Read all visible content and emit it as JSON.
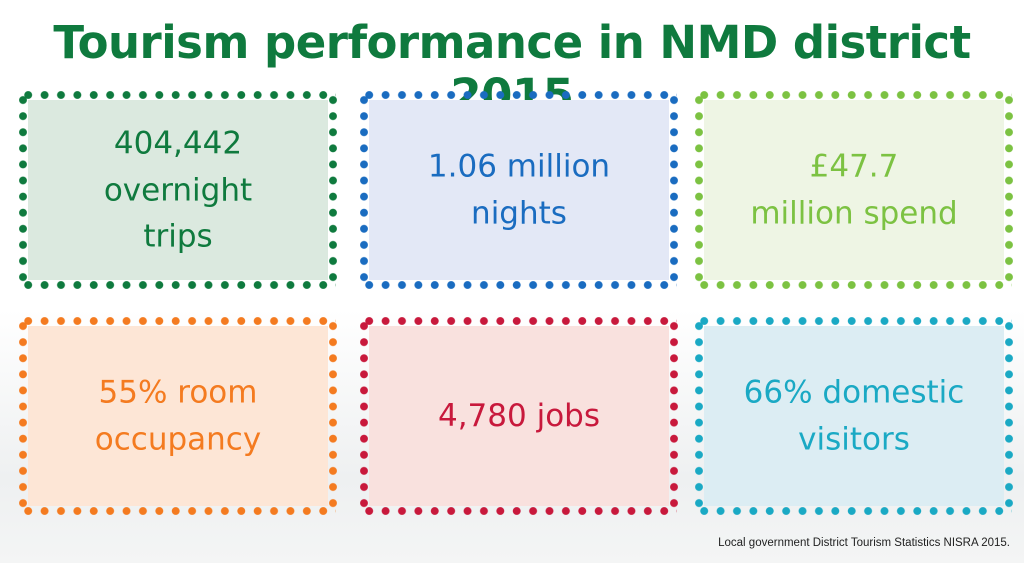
{
  "title": "Tourism performance in NMD district 2015",
  "stats": [
    {
      "lines": [
        "404,442",
        "overnight",
        "trips"
      ],
      "color": "#0f7a3e",
      "fill": "#dbe9df"
    },
    {
      "lines": [
        "1.06 million",
        "nights"
      ],
      "color": "#1a6cc0",
      "fill": "#e3e8f6"
    },
    {
      "lines": [
        "£47.7",
        "million spend"
      ],
      "color": "#7cc242",
      "fill": "#eef5e4"
    },
    {
      "lines": [
        "55% room",
        "occupancy"
      ],
      "color": "#f47b20",
      "fill": "#fde6d6"
    },
    {
      "lines": [
        "4,780 jobs"
      ],
      "color": "#c8193c",
      "fill": "#f9e1de"
    },
    {
      "lines": [
        "66% domestic",
        "visitors"
      ],
      "color": "#1aa9c4",
      "fill": "#dcedf3"
    }
  ],
  "source": "Local government District Tourism Statistics NISRA 2015."
}
